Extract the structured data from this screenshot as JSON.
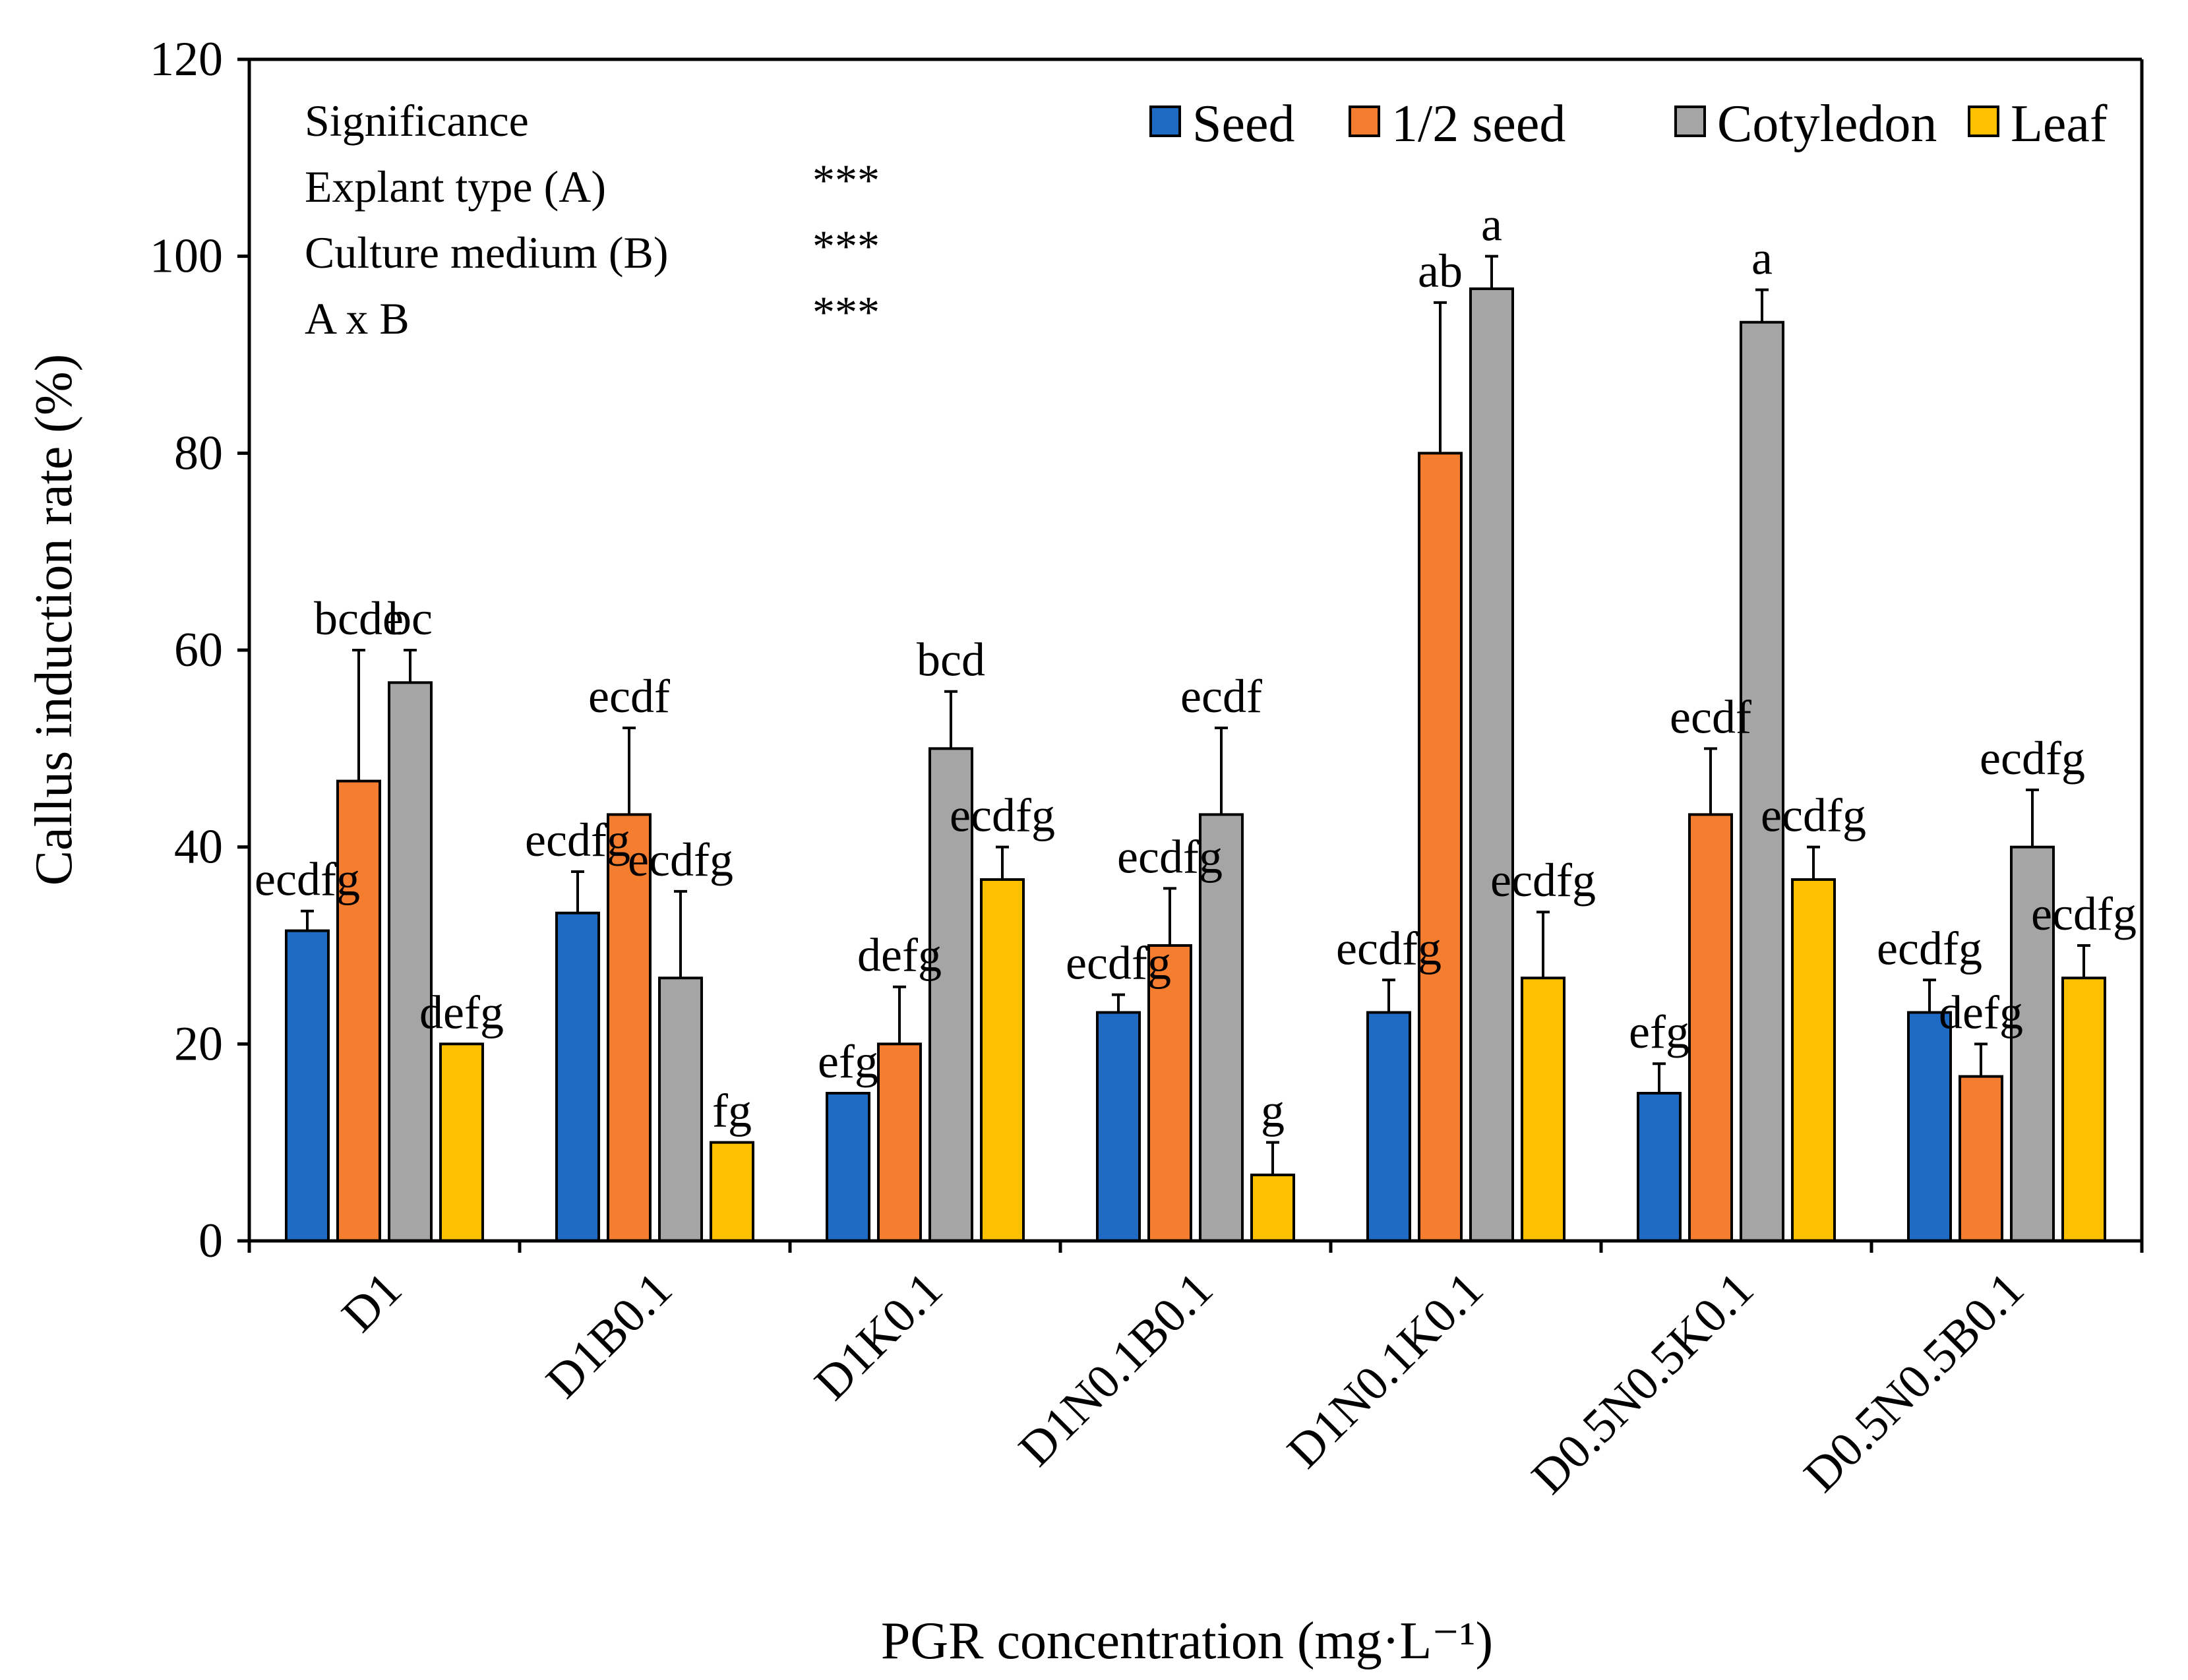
{
  "chart_data": {
    "type": "bar",
    "xlabel": "PGR concentration (mg·L⁻¹)",
    "ylabel": "Callus induction rate (%)",
    "ylim": [
      0,
      120
    ],
    "yticks": [
      "0",
      "20",
      "40",
      "60",
      "80",
      "100",
      "120"
    ],
    "legend_position": "top-right",
    "categories": [
      "D1",
      "D1B0.1",
      "D1K0.1",
      "D1N0.1B0.1",
      "D1N0.1K0.1",
      "D0.5N0.5K0.1",
      "D0.5N0.5B0.1"
    ],
    "series": [
      {
        "name": "Seed",
        "color": "#1F6BC4",
        "values": [
          31.5,
          33.3,
          15.0,
          23.2,
          23.2,
          15.0,
          23.2
        ],
        "errors": [
          2.0,
          4.2,
          0.0,
          1.8,
          3.3,
          3.0,
          3.3
        ],
        "letters": [
          "ecdfg",
          "ecdfg",
          "efg",
          "ecdfg",
          "ecdfg",
          "efg",
          "ecdfg"
        ]
      },
      {
        "name": "1/2 seed",
        "color": "#F47D30",
        "values": [
          46.7,
          43.3,
          20.0,
          30.0,
          80.0,
          43.3,
          16.7
        ],
        "errors": [
          13.3,
          8.8,
          5.8,
          5.8,
          15.3,
          6.7,
          3.3
        ],
        "letters": [
          "bcde",
          "ecdf",
          "defg",
          "ecdfg",
          "ab",
          "ecdf",
          "defg"
        ]
      },
      {
        "name": "Cotyledon",
        "color": "#A5A5A5",
        "values": [
          56.7,
          26.7,
          50.0,
          43.3,
          96.7,
          93.3,
          40.0
        ],
        "errors": [
          3.3,
          8.8,
          5.8,
          8.8,
          3.3,
          3.3,
          5.8
        ],
        "letters": [
          "bc",
          "ecdfg",
          "bcd",
          "ecdf",
          "a",
          "a",
          "ecdfg"
        ]
      },
      {
        "name": "Leaf",
        "color": "#FFC000",
        "values": [
          20.0,
          10.0,
          36.7,
          6.7,
          26.7,
          36.7,
          26.7
        ],
        "errors": [
          0.0,
          0.0,
          3.3,
          3.3,
          6.7,
          3.3,
          3.3
        ],
        "letters": [
          "defg",
          "fg",
          "ecdfg",
          "g",
          "ecdfg",
          "ecdfg",
          "ecdfg"
        ]
      }
    ],
    "annotations": {
      "heading": "Significance",
      "rows": [
        {
          "label": "Explant type (A)",
          "value": "***"
        },
        {
          "label": "Culture medium (B)",
          "value": "***"
        },
        {
          "label": "A x B",
          "value": "***"
        }
      ]
    }
  }
}
